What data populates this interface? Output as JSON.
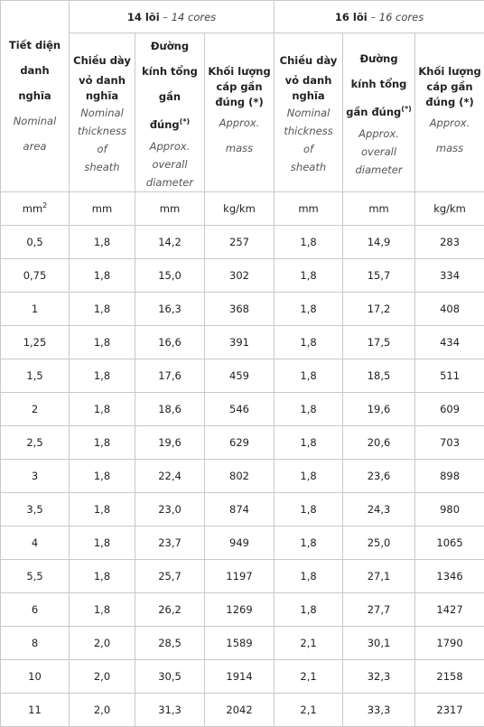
{
  "header": {
    "group1": {
      "vi": "14 lõi",
      "sep": " – ",
      "en": "14 cores"
    },
    "group2": {
      "vi": "16 lõi",
      "sep": " – ",
      "en": "16 cores"
    },
    "area": {
      "vi1": "Tiết diện",
      "vi2": "danh nghĩa",
      "en1": "Nominal",
      "en2": "area"
    },
    "thickness": {
      "vi1": "Chiều dày",
      "vi2": "vỏ danh",
      "vi3": "nghĩa",
      "en1": "Nominal",
      "en2": "thickness of",
      "en3": "sheath"
    },
    "diameter": {
      "vi1": "Đường",
      "vi2": "kính tổng",
      "vi3": "gần đúng",
      "sup": "(*)",
      "en1": "Approx.",
      "en2": "overall",
      "en3": "diameter"
    },
    "mass": {
      "vi1": "Khối lượng",
      "vi2": "cáp gần",
      "vi3": "đúng (*)",
      "en1": "Approx.",
      "en2": "mass"
    }
  },
  "units": {
    "area_base": "mm",
    "area_exp": "2",
    "thickness": "mm",
    "diameter": "mm",
    "mass": "kg/km"
  },
  "rows": [
    [
      "0,5",
      "1,8",
      "14,2",
      "257",
      "1,8",
      "14,9",
      "283"
    ],
    [
      "0,75",
      "1,8",
      "15,0",
      "302",
      "1,8",
      "15,7",
      "334"
    ],
    [
      "1",
      "1,8",
      "16,3",
      "368",
      "1,8",
      "17,2",
      "408"
    ],
    [
      "1,25",
      "1,8",
      "16,6",
      "391",
      "1,8",
      "17,5",
      "434"
    ],
    [
      "1,5",
      "1,8",
      "17,6",
      "459",
      "1,8",
      "18,5",
      "511"
    ],
    [
      "2",
      "1,8",
      "18,6",
      "546",
      "1,8",
      "19,6",
      "609"
    ],
    [
      "2,5",
      "1,8",
      "19,6",
      "629",
      "1,8",
      "20,6",
      "703"
    ],
    [
      "3",
      "1,8",
      "22,4",
      "802",
      "1,8",
      "23,6",
      "898"
    ],
    [
      "3,5",
      "1,8",
      "23,0",
      "874",
      "1,8",
      "24,3",
      "980"
    ],
    [
      "4",
      "1,8",
      "23,7",
      "949",
      "1,8",
      "25,0",
      "1065"
    ],
    [
      "5,5",
      "1,8",
      "25,7",
      "1197",
      "1,8",
      "27,1",
      "1346"
    ],
    [
      "6",
      "1,8",
      "26,2",
      "1269",
      "1,8",
      "27,7",
      "1427"
    ],
    [
      "8",
      "2,0",
      "28,5",
      "1589",
      "2,1",
      "30,1",
      "1790"
    ],
    [
      "10",
      "2,0",
      "30,5",
      "1914",
      "2,1",
      "32,3",
      "2158"
    ],
    [
      "11",
      "2,0",
      "31,3",
      "2042",
      "2,1",
      "33,3",
      "2317"
    ]
  ]
}
